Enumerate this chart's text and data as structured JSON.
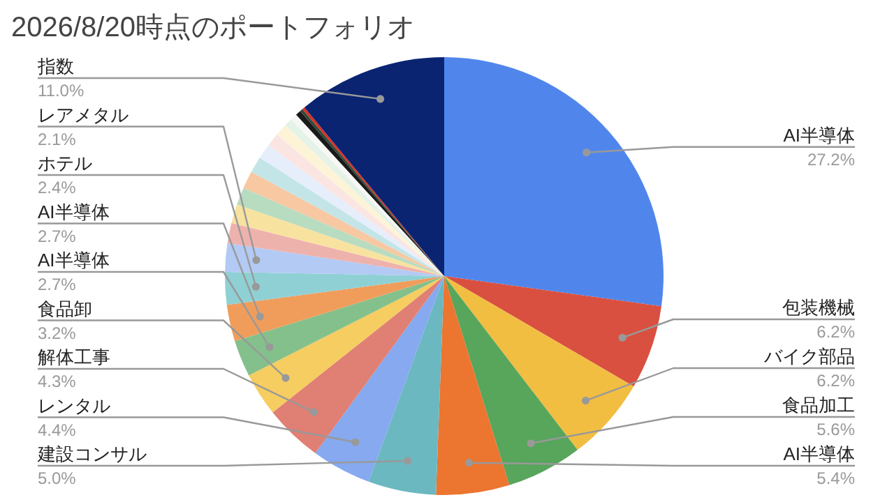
{
  "chart_data": {
    "type": "pie",
    "title": "2026/8/20時点のポートフォリオ",
    "categories": [
      "AI半導体",
      "包装機械",
      "バイク部品",
      "食品加工",
      "AI半導体",
      "建設コンサル",
      "レンタル",
      "解体工事",
      "食品卸",
      "AI半導体",
      "AI半導体",
      "ホテル",
      "レアメタル",
      null,
      null,
      null,
      null,
      null,
      null,
      null,
      null,
      null,
      null,
      null,
      null,
      null,
      "指数"
    ],
    "values": [
      27.2,
      6.2,
      6.2,
      5.6,
      5.4,
      5.0,
      4.4,
      4.3,
      3.2,
      2.7,
      2.7,
      2.4,
      2.1,
      1.5,
      1.4,
      1.3,
      1.3,
      1.2,
      1.1,
      1.0,
      0.9,
      0.6,
      0.5,
      0.4,
      0.2,
      0.2,
      11.0
    ],
    "value_labels": [
      "27.2%",
      "6.2%",
      "6.2%",
      "5.6%",
      "5.4%",
      "5.0%",
      "4.4%",
      "4.3%",
      "3.2%",
      "2.7%",
      "2.7%",
      "2.4%",
      "2.1%",
      null,
      null,
      null,
      null,
      null,
      null,
      null,
      null,
      null,
      null,
      null,
      null,
      null,
      "11.0%"
    ],
    "colors": [
      "#5086ec",
      "#d95040",
      "#f1be42",
      "#58a55c",
      "#ec7530",
      "#6bb8c0",
      "#86a9f0",
      "#e07f74",
      "#f5cd60",
      "#84c08c",
      "#f09d5c",
      "#8fd0d4",
      "#b3caf5",
      "#eeb2ad",
      "#f8e2a0",
      "#b8dcc0",
      "#f7c8a2",
      "#c3e5e7",
      "#e6eefc",
      "#fbe5e3",
      "#fdf4d8",
      "#e4f2e7",
      "#f7f7f5",
      "#1a1a1a",
      "#2e4a3a",
      "#d93025",
      "#0a2472"
    ]
  }
}
